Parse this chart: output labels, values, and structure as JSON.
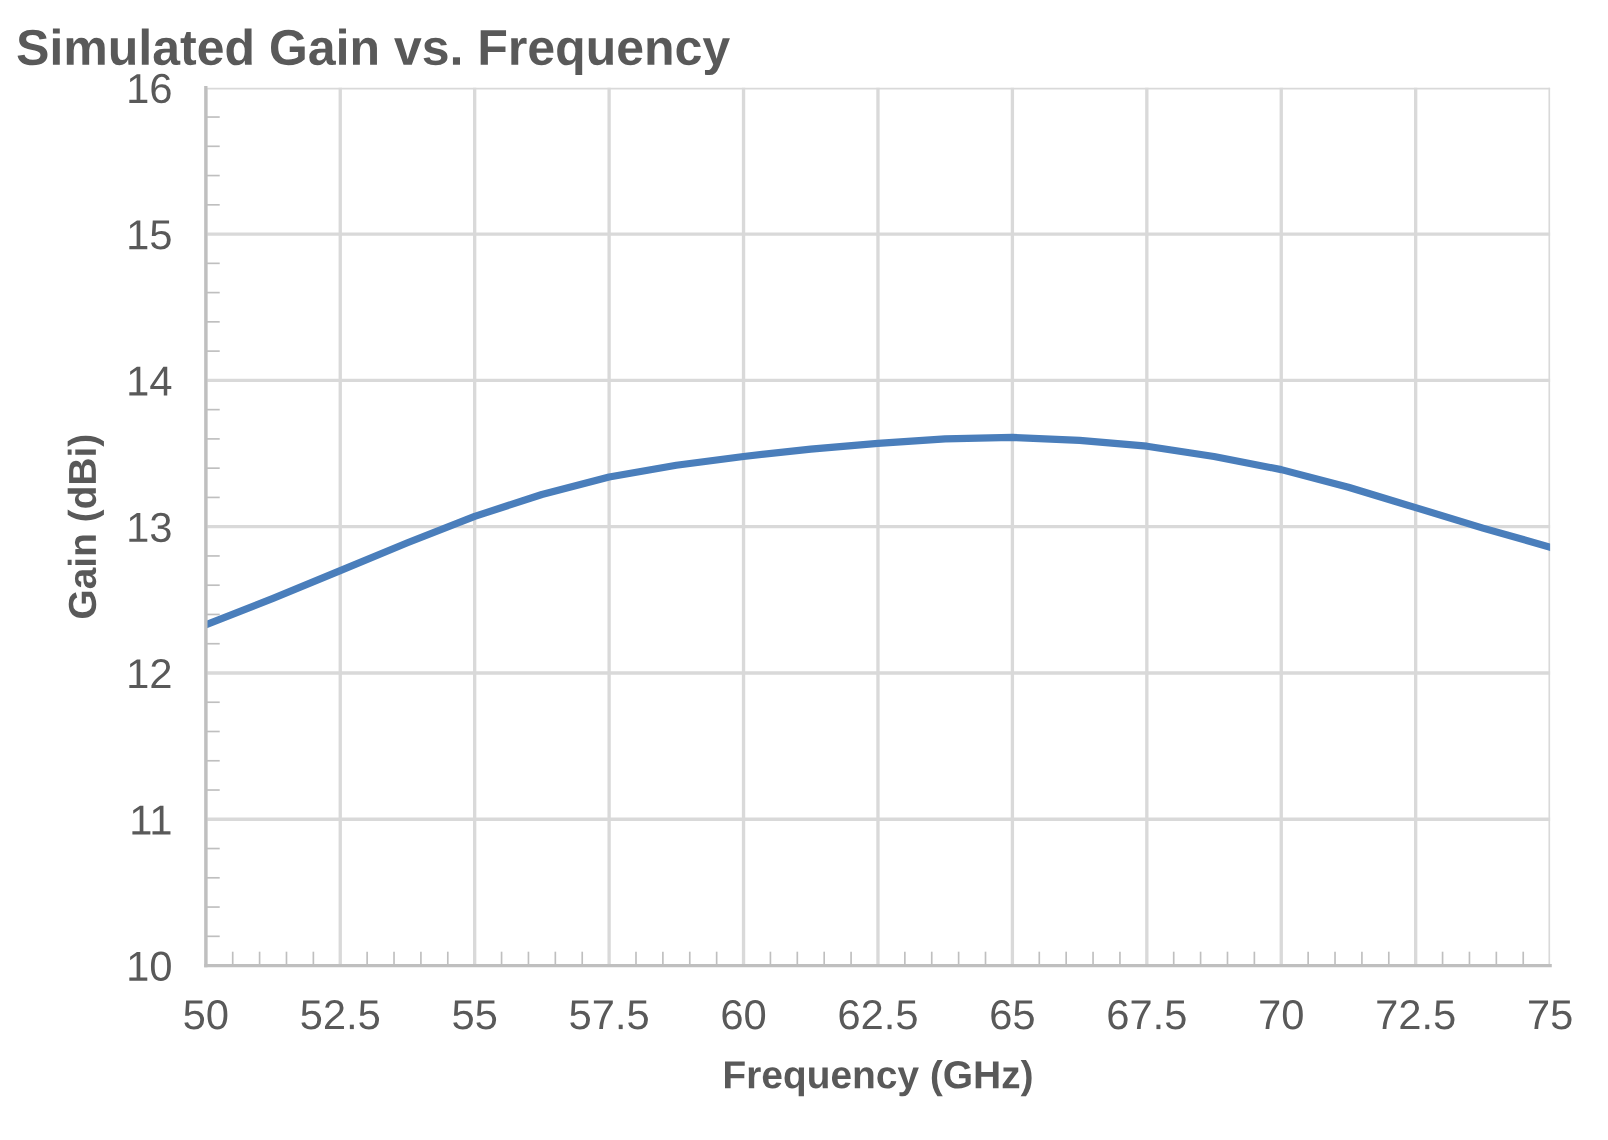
{
  "chart_data": {
    "type": "line",
    "title": "Simulated Gain vs. Frequency",
    "xlabel": "Frequency (GHz)",
    "ylabel": "Gain (dBi)",
    "x": [
      50,
      51.25,
      52.5,
      53.75,
      55,
      56.25,
      57.5,
      58.75,
      60,
      61.25,
      62.5,
      63.75,
      65,
      66.25,
      67.5,
      68.75,
      70,
      71.25,
      72.5,
      73.75,
      75
    ],
    "series": [
      {
        "color": "#4a7ebb",
        "values": [
          12.33,
          12.51,
          12.7,
          12.89,
          13.07,
          13.22,
          13.34,
          13.42,
          13.48,
          13.53,
          13.57,
          13.6,
          13.61,
          13.59,
          13.55,
          13.48,
          13.39,
          13.27,
          13.13,
          12.99,
          12.86
        ]
      }
    ],
    "xlim": [
      50,
      75
    ],
    "ylim": [
      10,
      16
    ],
    "xticks": [
      50,
      52.5,
      55,
      57.5,
      60,
      62.5,
      65,
      67.5,
      70,
      72.5,
      75,
      {
        "value": 50.5,
        "label": null
      },
      {
        "value": 51,
        "label": null
      },
      {
        "value": 51.5,
        "label": null
      },
      {
        "value": 52,
        "label": null
      },
      {
        "value": 53,
        "label": null
      },
      {
        "value": 53.5,
        "label": null
      },
      {
        "value": 54,
        "label": null
      },
      {
        "value": 54.5,
        "label": null
      },
      {
        "value": 55.5,
        "label": null
      },
      {
        "value": 56,
        "label": null
      },
      {
        "value": 56.5,
        "label": null
      },
      {
        "value": 57,
        "label": null
      },
      {
        "value": 58,
        "label": null
      },
      {
        "value": 58.5,
        "label": null
      },
      {
        "value": 59,
        "label": null
      },
      {
        "value": 59.5,
        "label": null
      },
      {
        "value": 60.5,
        "label": null
      },
      {
        "value": 61,
        "label": null
      },
      {
        "value": 61.5,
        "label": null
      },
      {
        "value": 62,
        "label": null
      },
      {
        "value": 63,
        "label": null
      },
      {
        "value": 63.5,
        "label": null
      },
      {
        "value": 64,
        "label": null
      },
      {
        "value": 64.5,
        "label": null
      },
      {
        "value": 65.5,
        "label": null
      },
      {
        "value": 66,
        "label": null
      },
      {
        "value": 66.5,
        "label": null
      },
      {
        "value": 67,
        "label": null
      },
      {
        "value": 68,
        "label": null
      },
      {
        "value": 68.5,
        "label": null
      },
      {
        "value": 69,
        "label": null
      },
      {
        "value": 69.5,
        "label": null
      },
      {
        "value": 70.5,
        "label": null
      },
      {
        "value": 71,
        "label": null
      },
      {
        "value": 71.5,
        "label": null
      },
      {
        "value": 72,
        "label": null
      },
      {
        "value": 73,
        "label": null
      },
      {
        "value": 73.5,
        "label": null
      },
      {
        "value": 74,
        "label": null
      },
      {
        "value": 74.5,
        "label": null
      }
    ],
    "yticks": [
      10,
      11,
      12,
      13,
      14,
      15,
      16,
      {
        "value": 10.2,
        "label": null
      },
      {
        "value": 10.4,
        "label": null
      },
      {
        "value": 10.6,
        "label": null
      },
      {
        "value": 10.8,
        "label": null
      },
      {
        "value": 11.2,
        "label": null
      },
      {
        "value": 11.4,
        "label": null
      },
      {
        "value": 11.6,
        "label": null
      },
      {
        "value": 11.8,
        "label": null
      },
      {
        "value": 12.2,
        "label": null
      },
      {
        "value": 12.4,
        "label": null
      },
      {
        "value": 12.6,
        "label": null
      },
      {
        "value": 12.8,
        "label": null
      },
      {
        "value": 13.2,
        "label": null
      },
      {
        "value": 13.4,
        "label": null
      },
      {
        "value": 13.6,
        "label": null
      },
      {
        "value": 13.8,
        "label": null
      },
      {
        "value": 14.2,
        "label": null
      },
      {
        "value": 14.4,
        "label": null
      },
      {
        "value": 14.6,
        "label": null
      },
      {
        "value": 14.8,
        "label": null
      },
      {
        "value": 15.2,
        "label": null
      },
      {
        "value": 15.4,
        "label": null
      },
      {
        "value": 15.6,
        "label": null
      },
      {
        "value": 15.8,
        "label": null
      }
    ],
    "grid": true,
    "marker": "none",
    "line_style": "solid"
  }
}
